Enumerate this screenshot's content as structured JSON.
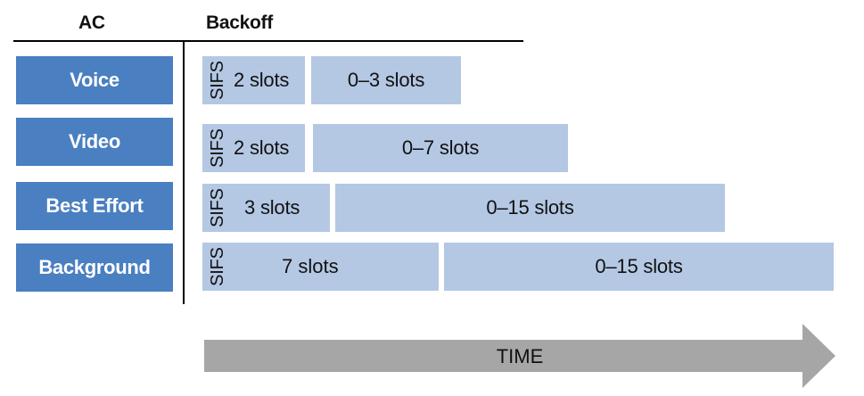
{
  "headers": {
    "ac": "AC",
    "backoff": "Backoff"
  },
  "sifs_label": "SIFS",
  "rows": [
    {
      "ac": "Voice",
      "aifsn": "2 slots",
      "cw": "0–3 slots"
    },
    {
      "ac": "Video",
      "aifsn": "2 slots",
      "cw": "0–7 slots"
    },
    {
      "ac": "Best Effort",
      "aifsn": "3 slots",
      "cw": "0–15 slots"
    },
    {
      "ac": "Background",
      "aifsn": "7 slots",
      "cw": "0–15 slots"
    }
  ],
  "time_label": "TIME",
  "colors": {
    "ac_box": "#4a7fc1",
    "segment": "#b4c8e4",
    "arrow": "#a6a6a6",
    "lines": "#000000"
  }
}
